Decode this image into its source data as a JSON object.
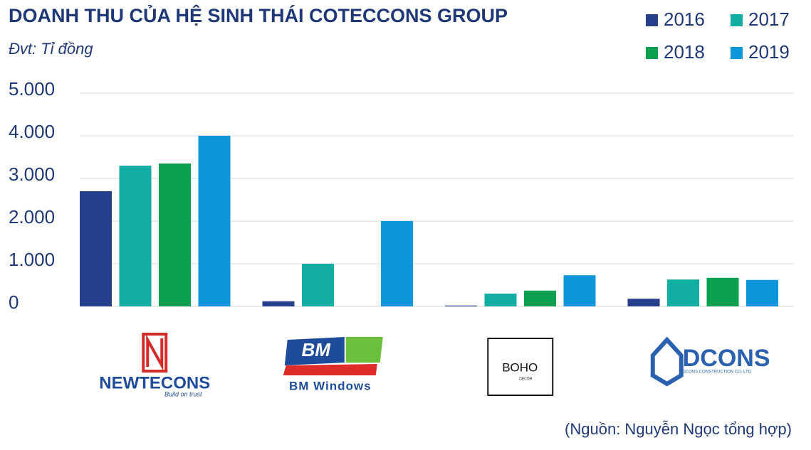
{
  "chart_data": {
    "type": "bar",
    "title": "DOANH THU CỦA HỆ SINH THÁI COTECCONS GROUP",
    "subtitle": "Đvt: Tỉ đồng",
    "source": "(Nguồn: Nguyễn Ngọc tổng hợp)",
    "categories": [
      "NEWTECONS",
      "BM Windows",
      "BOHO",
      "DCONS"
    ],
    "category_taglines": [
      "Build on trust",
      "BM",
      "DÉCOR",
      "DCONS CONSTRUCTION CO.,LTD"
    ],
    "series": [
      {
        "name": "2016",
        "color": "#253f8c",
        "values": [
          2700,
          120,
          20,
          180
        ]
      },
      {
        "name": "2017",
        "color": "#12ada3",
        "values": [
          3300,
          1000,
          300,
          630
        ]
      },
      {
        "name": "2018",
        "color": "#0aa04f",
        "values": [
          3350,
          null,
          370,
          670
        ]
      },
      {
        "name": "2019",
        "color": "#0e96dc",
        "values": [
          4000,
          2000,
          730,
          620
        ]
      }
    ],
    "ylim": [
      0,
      5000
    ],
    "yticks": [
      0,
      {
        "value": 1000,
        "label": "1.000"
      },
      {
        "value": 2000,
        "label": "2.000"
      },
      {
        "value": 3000,
        "label": "3.000"
      },
      {
        "value": 4000,
        "label": "4.000"
      },
      {
        "value": 5000,
        "label": "5.000"
      }
    ],
    "grid": true
  }
}
